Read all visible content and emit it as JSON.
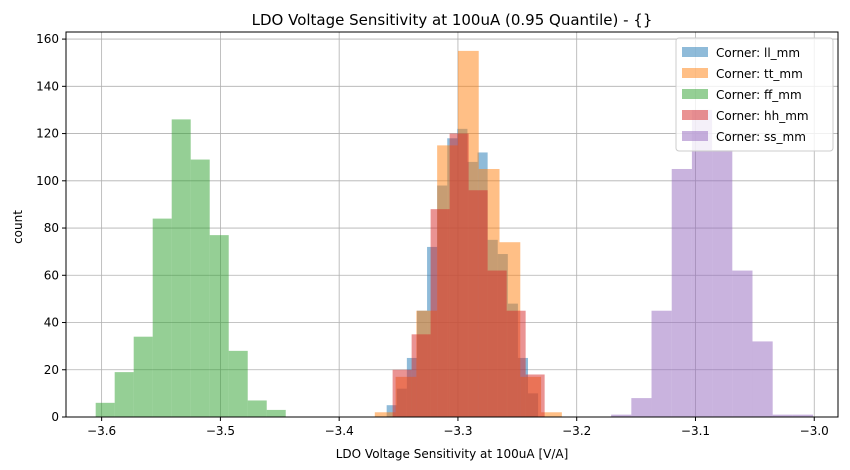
{
  "chart_data": {
    "type": "bar",
    "title": "LDO Voltage Sensitivity at 100uA (0.95 Quantile) - {}",
    "xlabel": "LDO Voltage Sensitivity at 100uA [V/A]",
    "ylabel": "count",
    "xlim": [
      -3.63,
      -2.98
    ],
    "ylim": [
      0,
      163
    ],
    "xticks": [
      -3.6,
      -3.5,
      -3.4,
      -3.3,
      -3.2,
      -3.1,
      -3.0
    ],
    "xtick_labels": [
      "−3.6",
      "−3.5",
      "−3.4",
      "−3.3",
      "−3.2",
      "−3.1",
      "−3.0"
    ],
    "yticks": [
      0,
      20,
      40,
      60,
      80,
      100,
      120,
      140,
      160
    ],
    "grid": true,
    "legend_position": "top-right",
    "series": [
      {
        "name": "Corner: ll_mm",
        "color": "#1f77b4",
        "opacity": 0.5,
        "edges": [
          -3.36,
          -3.3515,
          -3.343,
          -3.3345,
          -3.326,
          -3.3175,
          -3.309,
          -3.3005,
          -3.292,
          -3.2835,
          -3.275,
          -3.2665,
          -3.258,
          -3.2495,
          -3.241,
          -3.2325
        ],
        "counts": [
          5,
          12,
          25,
          45,
          72,
          98,
          118,
          122,
          108,
          112,
          75,
          69,
          48,
          25,
          10
        ]
      },
      {
        "name": "Corner: tt_mm",
        "color": "#ff7f0e",
        "opacity": 0.5,
        "edges": [
          -3.37,
          -3.3525,
          -3.335,
          -3.3175,
          -3.3,
          -3.2825,
          -3.265,
          -3.2475,
          -3.23,
          -3.2125
        ],
        "counts": [
          2,
          17,
          45,
          115,
          155,
          105,
          74,
          17,
          2
        ]
      },
      {
        "name": "Corner: ff_mm",
        "color": "#2ca02c",
        "opacity": 0.5,
        "edges": [
          -3.605,
          -3.589,
          -3.573,
          -3.557,
          -3.541,
          -3.525,
          -3.509,
          -3.493,
          -3.477,
          -3.461,
          -3.445
        ],
        "counts": [
          6,
          19,
          34,
          84,
          126,
          109,
          77,
          28,
          7,
          3
        ]
      },
      {
        "name": "Corner: hh_mm",
        "color": "#d62728",
        "opacity": 0.5,
        "edges": [
          -3.355,
          -3.339,
          -3.323,
          -3.307,
          -3.291,
          -3.275,
          -3.259,
          -3.243,
          -3.227
        ],
        "counts": [
          20,
          35,
          88,
          120,
          96,
          62,
          45,
          18
        ]
      },
      {
        "name": "Corner: ss_mm",
        "color": "#9467bd",
        "opacity": 0.5,
        "edges": [
          -3.171,
          -3.154,
          -3.137,
          -3.12,
          -3.103,
          -3.086,
          -3.069,
          -3.052,
          -3.035,
          -3.018,
          -3.001
        ],
        "counts": [
          1,
          8,
          45,
          105,
          130,
          113,
          62,
          32,
          1,
          1
        ]
      }
    ]
  }
}
